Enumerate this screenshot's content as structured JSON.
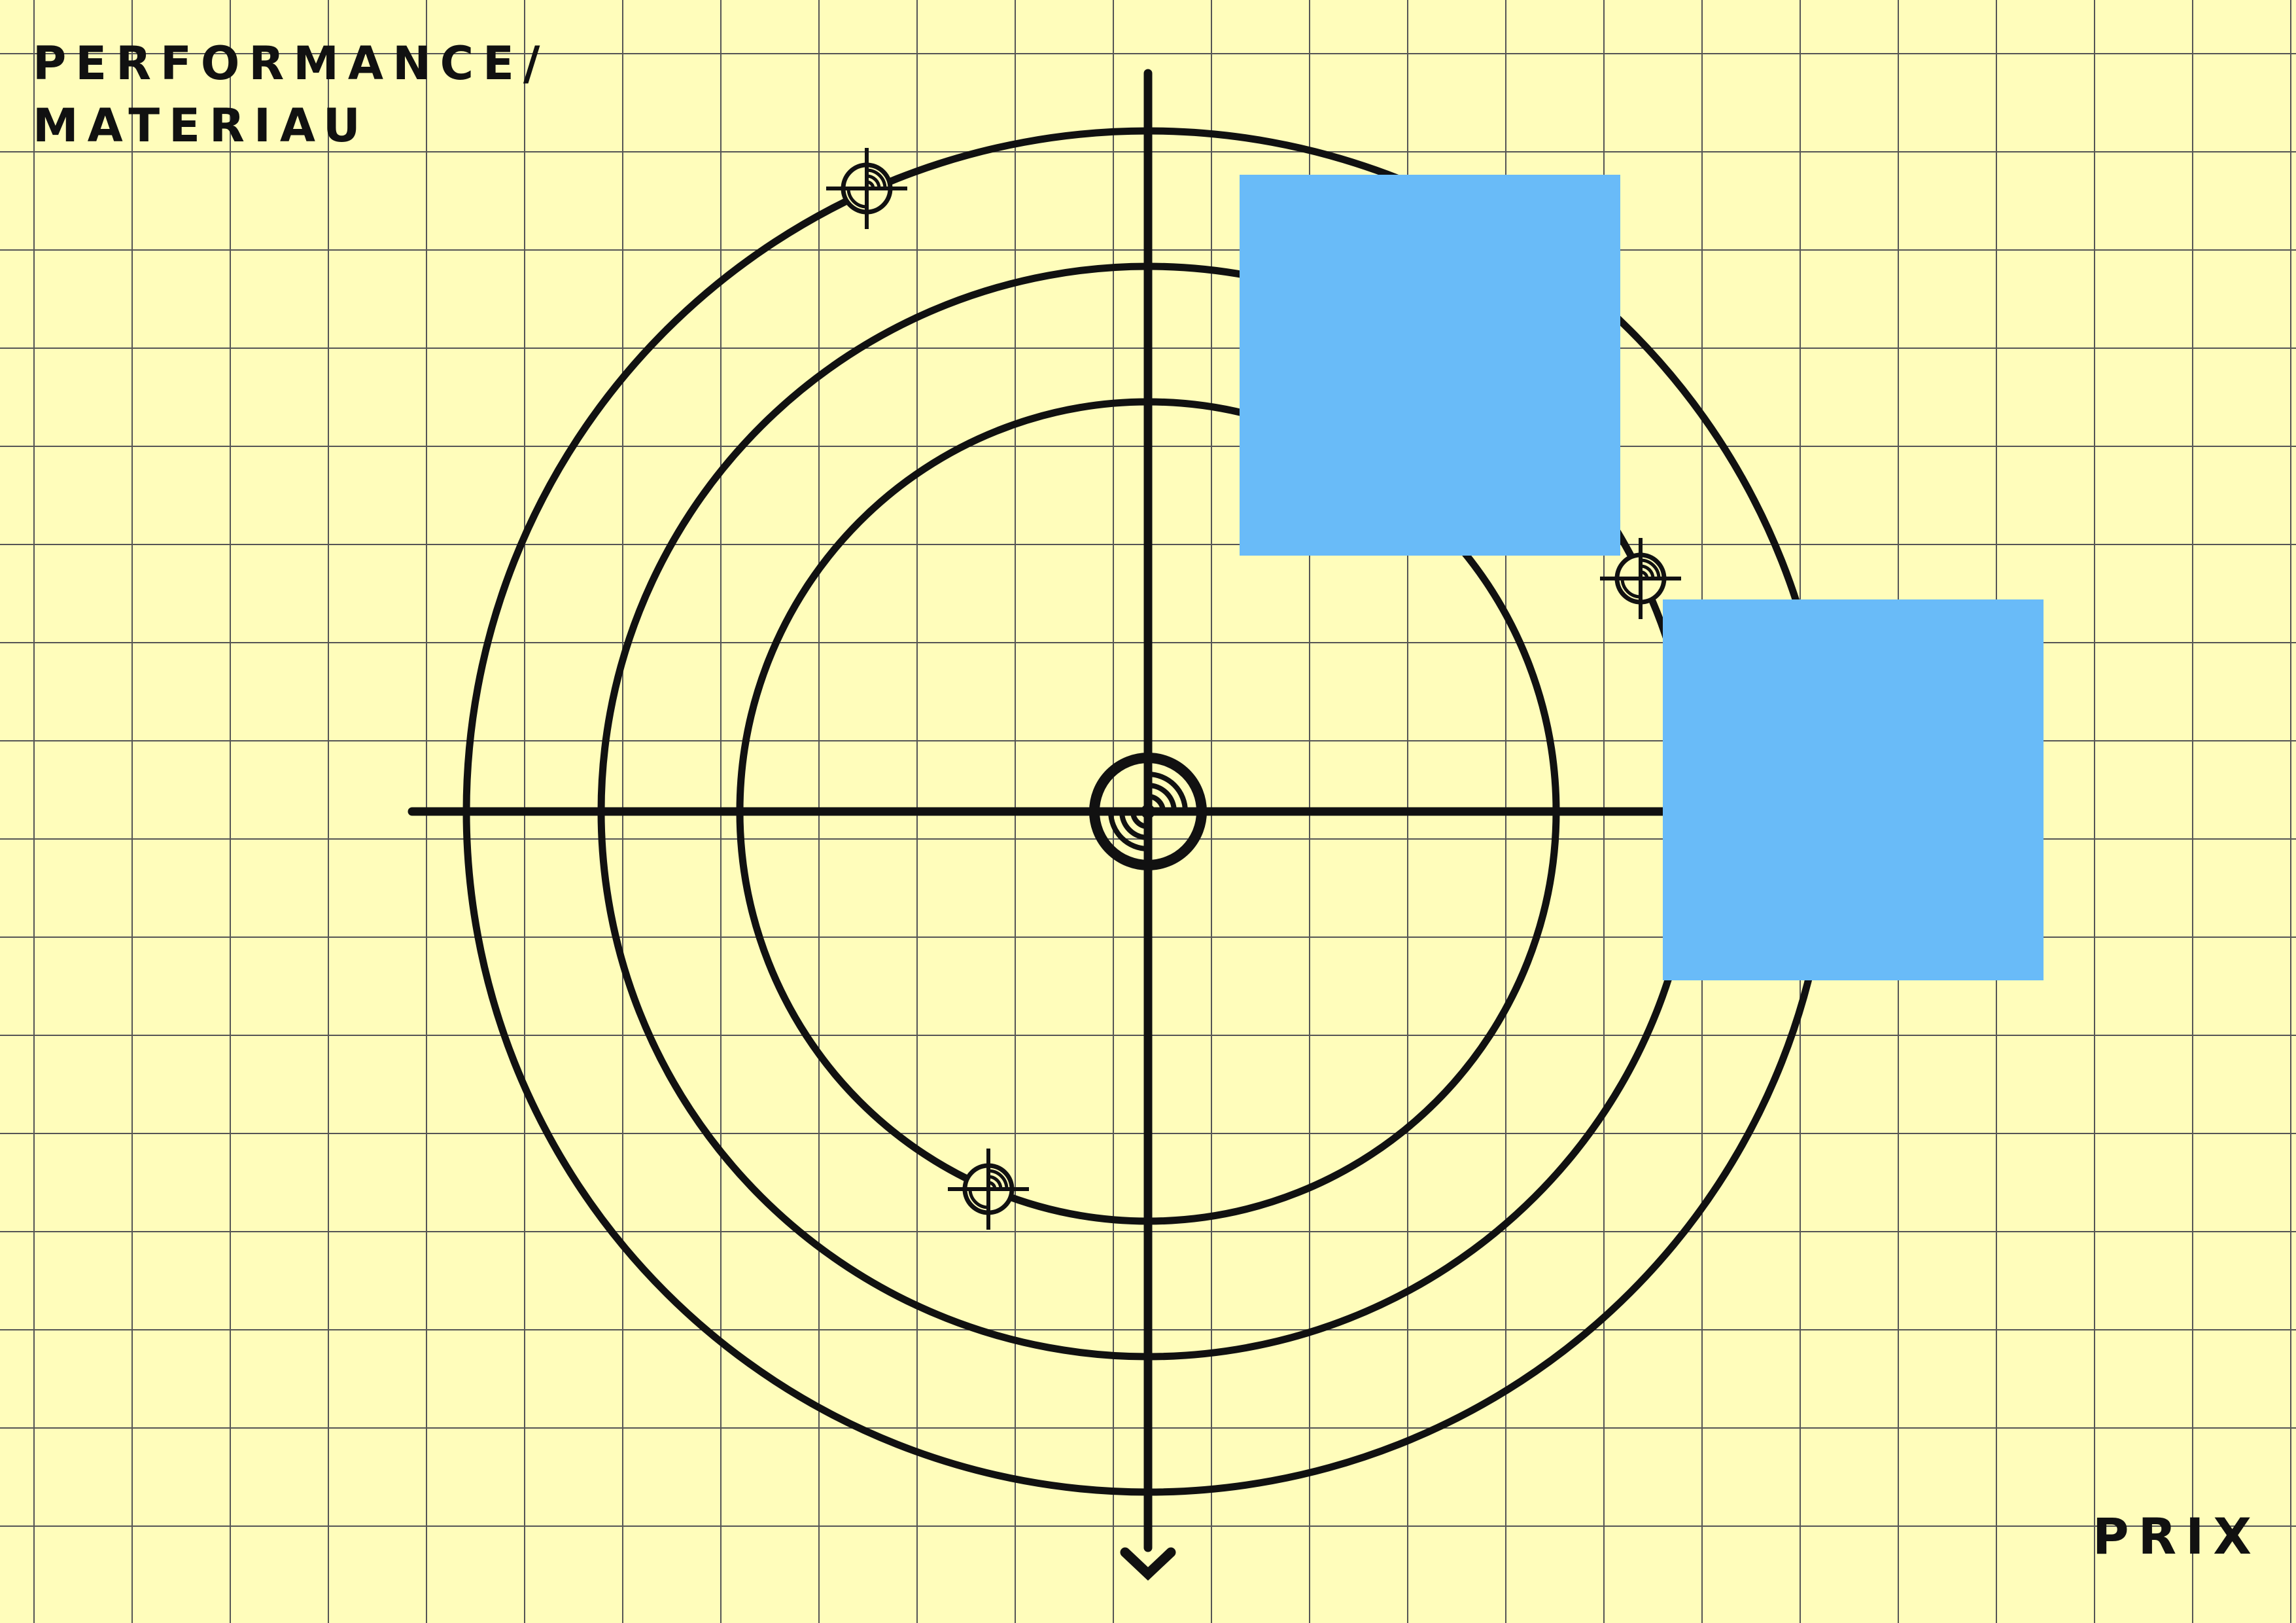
{
  "title": {
    "line1": "PERFORMANCE/",
    "line2": "MATERIAU"
  },
  "corner_label": "PRIX",
  "colors": {
    "background": "#FFFDBB",
    "grid": "#555555",
    "ink": "#111111",
    "card": "#69BBF8"
  },
  "rings": 3,
  "markers": [
    "target-icon",
    "target-icon",
    "target-icon"
  ],
  "cards": [
    "blue-card",
    "blue-card"
  ]
}
